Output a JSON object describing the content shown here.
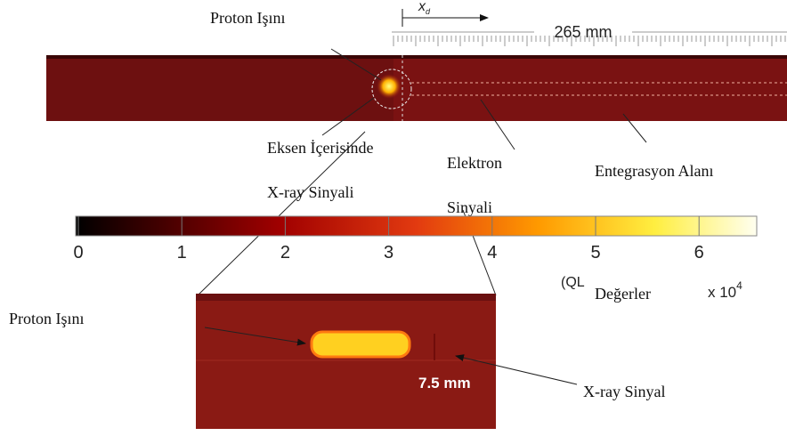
{
  "top_strip": {
    "beam_label": "Proton Işını",
    "distance_symbol": "x",
    "distance_subscript": "d",
    "length_label": "265 mm"
  },
  "annotations": {
    "axis_line1": "Eksen İçerisinde",
    "axis_line2": "X-ray Sinyali",
    "electron_line1": "Elektron",
    "electron_line2": "Sinyali",
    "integration": "Entegrasyon Alanı"
  },
  "colorbar": {
    "ticks": [
      0,
      1,
      2,
      3,
      4,
      5,
      6
    ],
    "unit_open": "(QL",
    "unit_name": "Değerler",
    "multiplier": "x 10",
    "exponent": "4"
  },
  "inset": {
    "beam_label": "Proton Işını",
    "scale_label": "7.5 mm",
    "signal_label": "X-ray Sinyal"
  }
}
